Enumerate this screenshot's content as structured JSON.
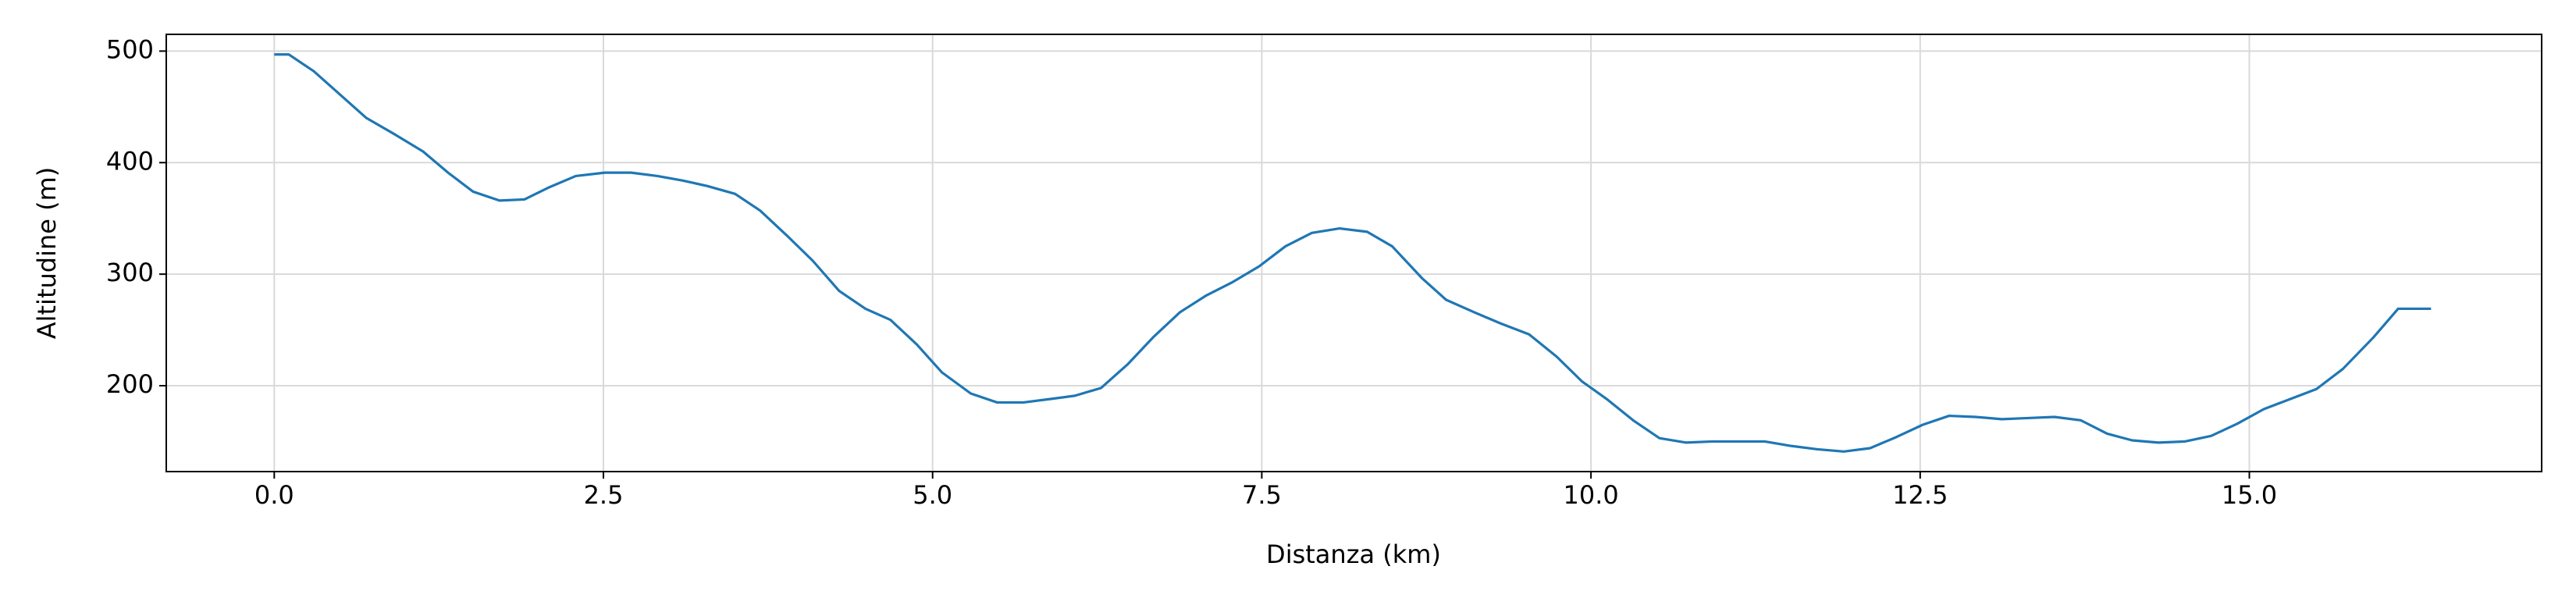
{
  "chart_data": {
    "type": "line",
    "xlabel": "Distanza (km)",
    "ylabel": "Altitudine (m)",
    "x": [
      0.0,
      0.11,
      0.3,
      0.49,
      0.7,
      0.92,
      1.13,
      1.32,
      1.51,
      1.71,
      1.9,
      2.09,
      2.29,
      2.51,
      2.71,
      2.91,
      3.1,
      3.29,
      3.5,
      3.69,
      3.89,
      4.09,
      4.29,
      4.49,
      4.68,
      4.88,
      5.07,
      5.29,
      5.49,
      5.69,
      5.89,
      6.08,
      6.28,
      6.48,
      6.68,
      6.88,
      7.08,
      7.28,
      7.48,
      7.68,
      7.88,
      8.09,
      8.3,
      8.49,
      8.72,
      8.9,
      9.11,
      9.31,
      9.53,
      9.74,
      9.93,
      10.12,
      10.32,
      10.52,
      10.72,
      10.92,
      11.12,
      11.32,
      11.52,
      11.72,
      11.92,
      12.12,
      12.32,
      12.52,
      12.72,
      12.92,
      13.12,
      13.32,
      13.52,
      13.72,
      13.92,
      14.11,
      14.31,
      14.51,
      14.71,
      14.91,
      15.11,
      15.31,
      15.51,
      15.71,
      15.94,
      16.13,
      16.38
    ],
    "series": [
      {
        "name": "Altitudine",
        "color": "#1f77b4",
        "values": [
          497,
          497,
          482,
          462,
          440,
          425,
          410,
          391,
          374,
          366,
          367,
          378,
          388,
          391,
          391,
          388,
          384,
          379,
          372,
          357,
          335,
          312,
          285,
          269,
          259,
          237,
          212,
          193,
          185,
          185,
          188,
          191,
          198,
          219,
          244,
          266,
          281,
          293,
          307,
          325,
          337,
          341,
          338,
          325,
          296,
          277,
          266,
          256,
          246,
          226,
          204,
          188,
          169,
          153,
          149,
          150,
          150,
          150,
          146,
          143,
          141,
          144,
          154,
          165,
          173,
          172,
          170,
          171,
          172,
          169,
          157,
          151,
          149,
          150,
          155,
          166,
          179,
          188,
          197,
          215,
          243,
          269,
          269
        ]
      }
    ],
    "xlim": [
      -0.82,
      17.22
    ],
    "ylim": [
      123,
      515
    ],
    "xticks": [
      {
        "value": 0,
        "label": "0.0"
      },
      {
        "value": 2.5,
        "label": "2.5"
      },
      {
        "value": 5,
        "label": "5.0"
      },
      {
        "value": 7.5,
        "label": "7.5"
      },
      {
        "value": 10,
        "label": "10.0"
      },
      {
        "value": 12.5,
        "label": "12.5"
      },
      {
        "value": 15,
        "label": "15.0"
      }
    ],
    "yticks": [
      200,
      300,
      400,
      500
    ],
    "grid": true
  }
}
